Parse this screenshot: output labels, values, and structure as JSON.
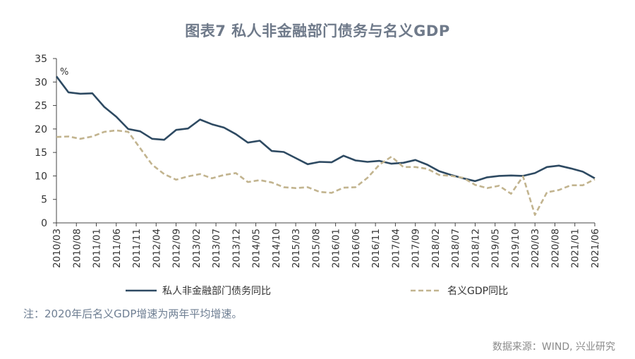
{
  "title": "图表7  私人非金融部门债务与名义GDP",
  "note": "注：2020年后名义GDP增速为两年平均增速。",
  "source": "数据来源：WIND, 兴业研究",
  "colors": {
    "series1": "#2e4a62",
    "series2": "#c2b48f",
    "axis": "#444444",
    "text": "#333333"
  },
  "chart_data": {
    "type": "line",
    "unit_label": "%",
    "ylim": [
      0,
      35
    ],
    "yticks": [
      0,
      5,
      10,
      15,
      20,
      25,
      30,
      35
    ],
    "grid": false,
    "legend_position": "bottom",
    "x_tick_labels": [
      "2010/03",
      "2010/08",
      "2011/01",
      "2011/06",
      "2011/11",
      "2012/04",
      "2012/09",
      "2013/02",
      "2013/07",
      "2013/12",
      "2014/05",
      "2014/10",
      "2015/03",
      "2015/08",
      "2016/01",
      "2016/06",
      "2016/11",
      "2017/04",
      "2017/09",
      "2018/02",
      "2018/07",
      "2018/12",
      "2019/05",
      "2019/10",
      "2020/03",
      "2020/08",
      "2021/01",
      "2021/06"
    ],
    "x": [
      "2010Q1",
      "2010Q2",
      "2010Q3",
      "2010Q4",
      "2011Q1",
      "2011Q2",
      "2011Q3",
      "2011Q4",
      "2012Q1",
      "2012Q2",
      "2012Q3",
      "2012Q4",
      "2013Q1",
      "2013Q2",
      "2013Q3",
      "2013Q4",
      "2014Q1",
      "2014Q2",
      "2014Q3",
      "2014Q4",
      "2015Q1",
      "2015Q2",
      "2015Q3",
      "2015Q4",
      "2016Q1",
      "2016Q2",
      "2016Q3",
      "2016Q4",
      "2017Q1",
      "2017Q2",
      "2017Q3",
      "2017Q4",
      "2018Q1",
      "2018Q2",
      "2018Q3",
      "2018Q4",
      "2019Q1",
      "2019Q2",
      "2019Q3",
      "2019Q4",
      "2020Q1",
      "2020Q2",
      "2020Q3",
      "2020Q4",
      "2021Q1",
      "2021Q2"
    ],
    "series": [
      {
        "name": "私人非金融部门债务同比",
        "values": [
          31.2,
          27.8,
          27.5,
          27.6,
          24.7,
          22.6,
          20.0,
          19.5,
          17.9,
          17.7,
          19.8,
          20.1,
          22.0,
          21.0,
          20.3,
          18.9,
          17.1,
          17.5,
          15.3,
          15.1,
          13.8,
          12.5,
          13.0,
          12.9,
          14.3,
          13.3,
          13.0,
          13.2,
          12.6,
          12.8,
          13.4,
          12.4,
          11.0,
          10.2,
          9.5,
          8.9,
          9.7,
          10.0,
          10.1,
          10.0,
          10.6,
          11.9,
          12.2,
          11.6,
          10.9,
          9.5
        ]
      },
      {
        "name": "名义GDP同比",
        "values": [
          18.3,
          18.4,
          17.9,
          18.4,
          19.4,
          19.7,
          19.4,
          15.9,
          12.4,
          10.4,
          9.2,
          9.9,
          10.4,
          9.5,
          10.2,
          10.6,
          8.7,
          9.1,
          8.6,
          7.6,
          7.4,
          7.6,
          6.6,
          6.4,
          7.5,
          7.6,
          9.6,
          12.4,
          14.1,
          11.9,
          11.9,
          11.5,
          10.2,
          10.0,
          9.6,
          8.1,
          7.4,
          7.9,
          6.2,
          9.9,
          1.7,
          6.5,
          7.0,
          8.0,
          8.0,
          9.3
        ]
      }
    ]
  }
}
